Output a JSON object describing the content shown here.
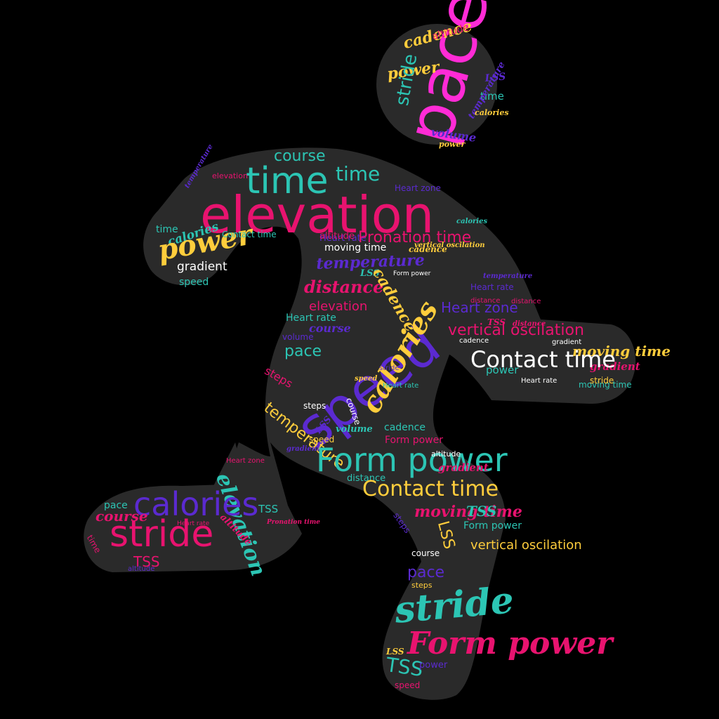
{
  "palette": {
    "background": "#000000",
    "silhouette": "#2a2a2a",
    "magenta": "#ff2bd6",
    "pink": "#e8136f",
    "teal": "#2cc5b4",
    "purple": "#5b2ad0",
    "yellow": "#ffcd3c",
    "white": "#ffffff"
  },
  "silhouette_icon": "running-person",
  "words": [
    "pace",
    "cadence",
    "power",
    "stride",
    "altitude",
    "LSS",
    "time",
    "temperature",
    "calories",
    "volume",
    "power",
    "time",
    "time",
    "course",
    "elevation",
    "calories",
    "time",
    "power",
    "gradient",
    "speed",
    "temperature",
    "elevation",
    "Contact time",
    "Heart zone",
    "calories",
    "Heart rate",
    "altitude",
    "Pronation time",
    "moving time",
    "cadence",
    "temperature",
    "LSS",
    "Form power",
    "distance",
    "cadence",
    "elevation",
    "Heart zone",
    "Heart rate",
    "temperature",
    "speed",
    "Heart rate",
    "volume",
    "course",
    "pace",
    "steps",
    "temperature",
    "steps",
    "LSS",
    "volume",
    "gradient",
    "course",
    "cadence",
    "speed",
    "calories",
    "stride",
    "vertical oscilation",
    "TSS",
    "distance",
    "cadence",
    "moving time",
    "gradient",
    "power",
    "distance",
    "Contact time",
    "Heart rate",
    "gradient",
    "moving time",
    "stride",
    "Form power",
    "speed",
    "Form power",
    "altitude",
    "gradient",
    "distance",
    "Contact time",
    "moving time",
    "TSS",
    "LSS",
    "Form power",
    "course",
    "steps",
    "vertical oscilation",
    "pace",
    "steps",
    "stride",
    "Form power",
    "LSS",
    "TSS",
    "power",
    "speed",
    "Heart zone",
    "elevation",
    "pace",
    "calories",
    "course",
    "stride",
    "TSS",
    "altitude",
    "time",
    "TSS",
    "altitude",
    "Pronation time",
    "Heart rate",
    "distance",
    "vertical oscilation",
    "Heart rate",
    "speed",
    "Pronation time"
  ]
}
